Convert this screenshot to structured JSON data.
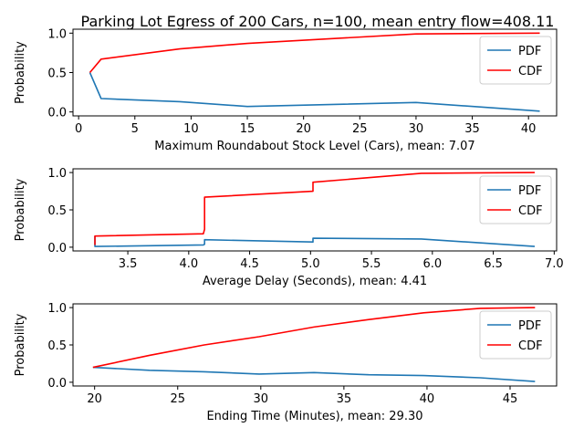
{
  "title": "Parking Lot Egress of 200 Cars, n=100, mean entry flow=408.11",
  "legend": [
    "PDF",
    "CDF"
  ],
  "colors": {
    "pdf": "#1f77b4",
    "cdf": "#ff0000"
  },
  "chart_data": [
    {
      "type": "line",
      "xlabel": "Maximum Roundabout Stock Level (Cars), mean: 7.07",
      "ylabel": "Probability",
      "xlim": [
        -0.5,
        42.5
      ],
      "ylim": [
        -0.05,
        1.05
      ],
      "xticks": [
        0,
        5,
        10,
        15,
        20,
        25,
        30,
        35,
        40
      ],
      "yticks": [
        0.0,
        0.5,
        1.0
      ],
      "legend_position": "upper right",
      "series": [
        {
          "name": "PDF",
          "color": "#1f77b4",
          "x": [
            1,
            2,
            9,
            15,
            30,
            41
          ],
          "y": [
            0.5,
            0.17,
            0.13,
            0.07,
            0.12,
            0.01
          ]
        },
        {
          "name": "CDF",
          "color": "#ff0000",
          "x": [
            1,
            2,
            9,
            15,
            30,
            41
          ],
          "y": [
            0.5,
            0.67,
            0.8,
            0.87,
            0.99,
            1.0
          ]
        }
      ]
    },
    {
      "type": "line",
      "xlabel": "Average Delay (Seconds), mean: 4.41",
      "ylabel": "Probability",
      "xlim": [
        3.05,
        7.02
      ],
      "ylim": [
        -0.05,
        1.05
      ],
      "xticks": [
        3.5,
        4.0,
        4.5,
        5.0,
        5.5,
        6.0,
        6.5,
        7.0
      ],
      "yticks": [
        0.0,
        0.5,
        1.0
      ],
      "legend_position": "upper right",
      "series": [
        {
          "name": "PDF",
          "color": "#1f77b4",
          "x": [
            3.23,
            3.23,
            4.12,
            4.13,
            4.13,
            5.02,
            5.02,
            5.91,
            6.84
          ],
          "y": [
            0.15,
            0.01,
            0.03,
            0.04,
            0.1,
            0.07,
            0.12,
            0.11,
            0.01
          ]
        },
        {
          "name": "CDF",
          "color": "#ff0000",
          "x": [
            3.23,
            3.23,
            4.12,
            4.13,
            4.13,
            5.02,
            5.02,
            5.91,
            6.84
          ],
          "y": [
            0.03,
            0.15,
            0.18,
            0.24,
            0.67,
            0.75,
            0.87,
            0.99,
            1.0
          ]
        }
      ]
    },
    {
      "type": "line",
      "xlabel": "Ending Time (Minutes), mean: 29.30",
      "ylabel": "Probability",
      "xlim": [
        18.7,
        47.8
      ],
      "ylim": [
        -0.05,
        1.05
      ],
      "xticks": [
        20,
        25,
        30,
        35,
        40,
        45
      ],
      "yticks": [
        0.0,
        0.5,
        1.0
      ],
      "legend_position": "upper right",
      "series": [
        {
          "name": "PDF",
          "color": "#1f77b4",
          "x": [
            19.9,
            23.3,
            26.6,
            29.9,
            33.2,
            36.5,
            39.8,
            43.2,
            46.5
          ],
          "y": [
            0.2,
            0.16,
            0.14,
            0.11,
            0.13,
            0.1,
            0.09,
            0.06,
            0.01
          ]
        },
        {
          "name": "CDF",
          "color": "#ff0000",
          "x": [
            19.9,
            23.3,
            26.6,
            29.9,
            33.2,
            36.5,
            39.8,
            43.2,
            46.5
          ],
          "y": [
            0.2,
            0.36,
            0.5,
            0.61,
            0.74,
            0.84,
            0.93,
            0.99,
            1.0
          ]
        }
      ]
    }
  ]
}
